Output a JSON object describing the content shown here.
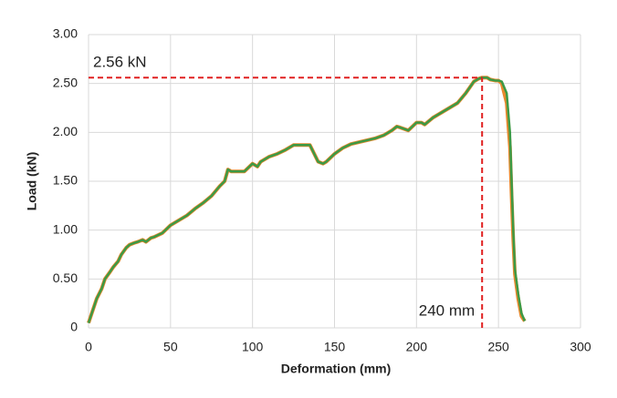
{
  "chart_data": {
    "type": "line",
    "xlabel": "Deformation (mm)",
    "ylabel": "Load (kN)",
    "x": [
      0,
      2,
      5,
      8,
      10,
      13,
      15,
      18,
      20,
      23,
      25,
      28,
      30,
      33,
      35,
      38,
      40,
      45,
      50,
      55,
      60,
      65,
      70,
      75,
      80,
      83,
      85,
      87,
      90,
      95,
      100,
      103,
      105,
      110,
      115,
      120,
      125,
      130,
      135,
      140,
      143,
      145,
      150,
      155,
      160,
      165,
      170,
      175,
      180,
      185,
      188,
      190,
      195,
      200,
      203,
      205,
      210,
      215,
      220,
      225,
      230,
      235,
      238,
      240,
      243,
      245,
      248,
      250,
      252,
      255,
      257,
      258,
      259,
      260,
      262,
      264,
      266
    ],
    "series": [
      {
        "color": "#e8892e",
        "values": [
          0.05,
          0.15,
          0.3,
          0.4,
          0.5,
          0.57,
          0.62,
          0.68,
          0.75,
          0.82,
          0.85,
          0.87,
          0.88,
          0.9,
          0.88,
          0.92,
          0.93,
          0.97,
          1.05,
          1.1,
          1.15,
          1.22,
          1.28,
          1.35,
          1.45,
          1.5,
          1.62,
          1.6,
          1.6,
          1.6,
          1.68,
          1.65,
          1.7,
          1.75,
          1.78,
          1.82,
          1.87,
          1.87,
          1.87,
          1.7,
          1.68,
          1.7,
          1.78,
          1.84,
          1.88,
          1.9,
          1.92,
          1.94,
          1.97,
          2.02,
          2.06,
          2.05,
          2.02,
          2.1,
          2.1,
          2.08,
          2.15,
          2.2,
          2.25,
          2.3,
          2.4,
          2.52,
          2.55,
          2.56,
          2.56,
          2.54,
          2.53,
          2.53,
          2.5,
          2.3,
          1.85,
          1.35,
          0.9,
          0.55,
          0.3,
          0.12,
          0.07
        ]
      },
      {
        "color": "#3c9a46",
        "values": [
          0.05,
          0.15,
          0.3,
          0.4,
          0.5,
          0.57,
          0.62,
          0.68,
          0.75,
          0.82,
          0.85,
          0.87,
          0.88,
          0.9,
          0.88,
          0.92,
          0.93,
          0.97,
          1.05,
          1.1,
          1.15,
          1.22,
          1.28,
          1.35,
          1.45,
          1.5,
          1.62,
          1.6,
          1.6,
          1.6,
          1.68,
          1.65,
          1.7,
          1.75,
          1.78,
          1.82,
          1.87,
          1.87,
          1.87,
          1.7,
          1.68,
          1.7,
          1.78,
          1.84,
          1.88,
          1.9,
          1.92,
          1.94,
          1.97,
          2.02,
          2.06,
          2.05,
          2.02,
          2.1,
          2.1,
          2.08,
          2.15,
          2.2,
          2.25,
          2.3,
          2.4,
          2.52,
          2.55,
          2.56,
          2.56,
          2.54,
          2.53,
          2.53,
          2.52,
          2.4,
          2.0,
          1.5,
          1.0,
          0.6,
          0.35,
          0.15,
          0.07
        ]
      }
    ],
    "xlim": [
      0,
      300
    ],
    "xticks": [
      0,
      50,
      100,
      150,
      200,
      250,
      300
    ],
    "ylim": [
      0,
      3
    ],
    "yticks": [
      0,
      {
        "value": 0.5,
        "label": "0.50"
      },
      {
        "value": 1,
        "label": "1.00"
      },
      {
        "value": 1.5,
        "label": "1.50"
      },
      {
        "value": 2,
        "label": "2.00"
      },
      {
        "value": 2.5,
        "label": "2.50"
      },
      {
        "value": 3,
        "label": "3.00"
      }
    ],
    "grid": true,
    "reference_lines": [
      {
        "axis": "y",
        "value": 2.56,
        "label": "2.56 kN",
        "color": "#e02020"
      },
      {
        "axis": "x",
        "value": 240,
        "label": "240 mm",
        "color": "#e02020"
      }
    ]
  }
}
